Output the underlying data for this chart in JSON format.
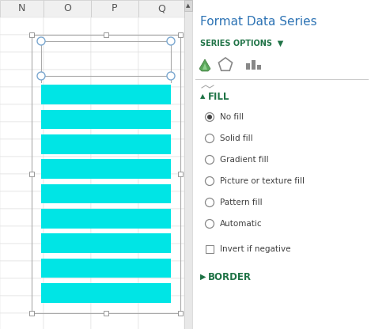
{
  "fig_width": 4.69,
  "fig_height": 4.16,
  "dpi": 100,
  "bg_color": "#ffffff",
  "spreadsheet": {
    "col_headers": [
      "N",
      "O",
      "P",
      "Q"
    ],
    "header_bg": "#f0f0f0",
    "cell_bg": "#ffffff",
    "grid_color": "#d4d4d4",
    "header_text_color": "#555555"
  },
  "chart": {
    "n_bars": 9,
    "bar_color": "#00e5e5",
    "handle_color": "#6699cc",
    "border_color": "#999999"
  },
  "panel": {
    "bg": "#ffffff",
    "title": "Format Data Series",
    "title_color": "#2e74b5",
    "title_size": 11,
    "options_text": "SERIES OPTIONS",
    "options_color": "#1f7346",
    "fill_label": "FILL",
    "fill_color": "#1f7346",
    "border_label": "BORDER",
    "border_color": "#1f7346",
    "radio_options": [
      "No fill",
      "Solid fill",
      "Gradient fill",
      "Picture or texture fill",
      "Pattern fill",
      "Automatic"
    ],
    "checkbox_option": "Invert if negative",
    "selected_radio": 0,
    "text_color": "#404040",
    "text_size": 7.5
  }
}
